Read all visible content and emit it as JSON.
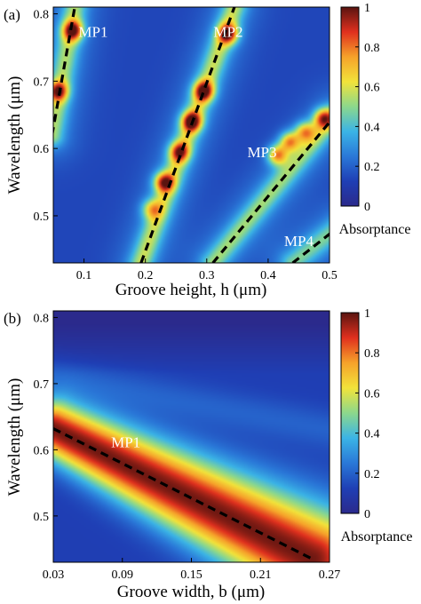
{
  "chart_data": [
    {
      "type": "heatmap",
      "panel_label": "(a)",
      "xlabel": "Groove height, h (μm)",
      "ylabel": "Wavelength (μm)",
      "xlim": [
        0.05,
        0.5
      ],
      "ylim": [
        0.43,
        0.81
      ],
      "xticks": [
        "0.1",
        "0.2",
        "0.3",
        "0.4",
        "0.5"
      ],
      "xtick_values": [
        0.1,
        0.2,
        0.3,
        0.4,
        0.5
      ],
      "yticks": [
        "0.5",
        "0.6",
        "0.7",
        "0.8"
      ],
      "ytick_values": [
        0.5,
        0.6,
        0.7,
        0.8
      ],
      "colorbar": {
        "label": "Absorptance",
        "ticks": [
          "0",
          "0.2",
          "0.4",
          "0.6",
          "0.8",
          "1"
        ],
        "tick_values": [
          0,
          0.2,
          0.4,
          0.6,
          0.8,
          1
        ],
        "range": [
          0,
          1
        ]
      },
      "annotations": [
        {
          "text": "MP1",
          "x": 0.115,
          "y": 0.766
        },
        {
          "text": "MP2",
          "x": 0.335,
          "y": 0.766
        },
        {
          "text": "MP3",
          "x": 0.39,
          "y": 0.587
        },
        {
          "text": "MP4",
          "x": 0.45,
          "y": 0.455
        }
      ],
      "modes": [
        {
          "name": "MP1",
          "line": [
            [
              0.048,
              0.62
            ],
            [
              0.085,
              0.81
            ]
          ],
          "width": 0.9,
          "hotspots": [
            [
              0.082,
              0.775,
              0.95
            ],
            [
              0.057,
              0.685,
              0.85
            ]
          ]
        },
        {
          "name": "MP2",
          "line": [
            [
              0.193,
              0.43
            ],
            [
              0.345,
              0.81
            ]
          ],
          "width": 1.0,
          "hotspots": [
            [
              0.21,
              0.51,
              0.55
            ],
            [
              0.23,
              0.55,
              0.9
            ],
            [
              0.255,
              0.595,
              0.8
            ],
            [
              0.275,
              0.64,
              1.0
            ],
            [
              0.295,
              0.685,
              0.95
            ],
            [
              0.335,
              0.77,
              0.9
            ]
          ]
        },
        {
          "name": "MP3",
          "line": [
            [
              0.31,
              0.43
            ],
            [
              0.51,
              0.65
            ]
          ],
          "width": 0.85,
          "hotspots": [
            [
              0.415,
              0.59,
              0.9
            ],
            [
              0.435,
              0.61,
              0.85
            ],
            [
              0.46,
              0.625,
              0.75
            ],
            [
              0.49,
              0.645,
              0.9
            ]
          ]
        },
        {
          "name": "MP4",
          "line": [
            [
              0.44,
              0.43
            ],
            [
              0.51,
              0.48
            ]
          ],
          "width": 0.7,
          "hotspots": []
        }
      ]
    },
    {
      "type": "heatmap",
      "panel_label": "(b)",
      "xlabel": "Groove width, b (μm)",
      "ylabel": "Wavelength (μm)",
      "xlim": [
        0.03,
        0.27
      ],
      "ylim": [
        0.43,
        0.81
      ],
      "xticks": [
        "0.03",
        "0.09",
        "0.15",
        "0.21",
        "0.27"
      ],
      "xtick_values": [
        0.03,
        0.09,
        0.15,
        0.21,
        0.27
      ],
      "yticks": [
        "0.5",
        "0.6",
        "0.7",
        "0.8"
      ],
      "ytick_values": [
        0.5,
        0.6,
        0.7,
        0.8
      ],
      "colorbar": {
        "label": "Absorptance",
        "ticks": [
          "0",
          "0.2",
          "0.4",
          "0.6",
          "0.8",
          "1"
        ],
        "tick_values": [
          0,
          0.2,
          0.4,
          0.6,
          0.8,
          1
        ],
        "range": [
          0,
          1
        ]
      },
      "annotations": [
        {
          "text": "MP1",
          "x": 0.093,
          "y": 0.604
        }
      ],
      "modes": [
        {
          "name": "MP1",
          "line": [
            [
              0.03,
              0.632
            ],
            [
              0.255,
              0.435
            ]
          ],
          "width": 1.0
        }
      ]
    }
  ]
}
